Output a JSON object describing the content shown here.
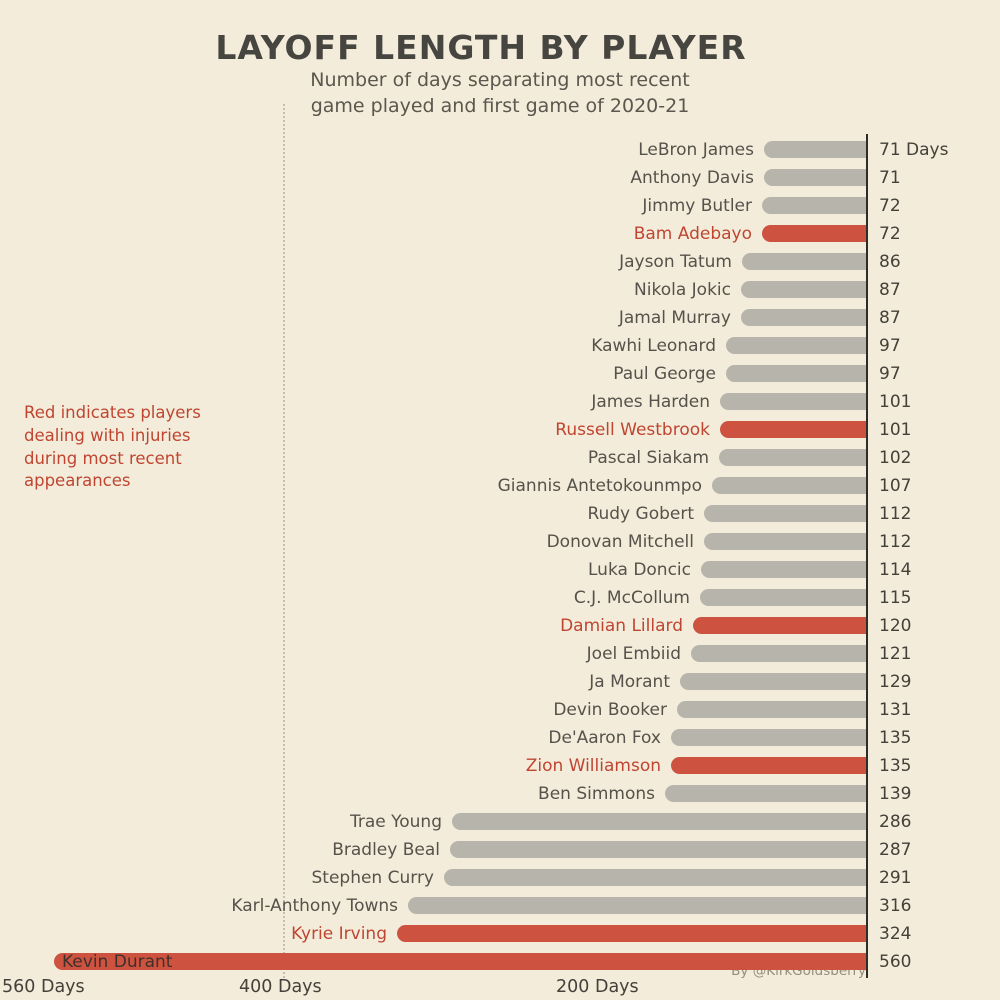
{
  "chart": {
    "title": "LAYOFF LENGTH BY PLAYER",
    "subtitle_line1": "Number of days separating most recent",
    "subtitle_line2": "game played and first game of 2020-21",
    "annotation": "Red indicates players dealing with injuries during most recent appearances",
    "byline": "By @KirkGoldsberry",
    "axis_labels": [
      "560 Days",
      "400 Days",
      "200 Days"
    ]
  },
  "chart_data": {
    "type": "bar",
    "orientation": "horizontal",
    "title": "LAYOFF LENGTH BY PLAYER",
    "subtitle": "Number of days separating most recent game played and first game of 2020-21",
    "unit": "days",
    "x_axis_reversed": true,
    "axis_ticks_days": [
      560,
      400,
      200
    ],
    "legend_note": "Red indicates players dealing with injuries during most recent appearances",
    "colors": {
      "background": "#f3ecda",
      "bar_default": "#b7b4ac",
      "bar_injured": "#cd5340",
      "injured_text": "#bf4531"
    },
    "players": [
      {
        "name": "LeBron James",
        "days": 71,
        "injured": false,
        "value_label": "71 Days"
      },
      {
        "name": "Anthony Davis",
        "days": 71,
        "injured": false,
        "value_label": "71"
      },
      {
        "name": "Jimmy Butler",
        "days": 72,
        "injured": false,
        "value_label": "72"
      },
      {
        "name": "Bam Adebayo",
        "days": 72,
        "injured": true,
        "value_label": "72"
      },
      {
        "name": "Jayson Tatum",
        "days": 86,
        "injured": false,
        "value_label": "86"
      },
      {
        "name": "Nikola Jokic",
        "days": 87,
        "injured": false,
        "value_label": "87"
      },
      {
        "name": "Jamal Murray",
        "days": 87,
        "injured": false,
        "value_label": "87"
      },
      {
        "name": "Kawhi Leonard",
        "days": 97,
        "injured": false,
        "value_label": "97"
      },
      {
        "name": "Paul George",
        "days": 97,
        "injured": false,
        "value_label": "97"
      },
      {
        "name": "James Harden",
        "days": 101,
        "injured": false,
        "value_label": "101"
      },
      {
        "name": "Russell Westbrook",
        "days": 101,
        "injured": true,
        "value_label": "101"
      },
      {
        "name": "Pascal Siakam",
        "days": 102,
        "injured": false,
        "value_label": "102"
      },
      {
        "name": "Giannis Antetokounmpo",
        "days": 107,
        "injured": false,
        "value_label": "107"
      },
      {
        "name": "Rudy Gobert",
        "days": 112,
        "injured": false,
        "value_label": "112"
      },
      {
        "name": "Donovan Mitchell",
        "days": 112,
        "injured": false,
        "value_label": "112"
      },
      {
        "name": "Luka Doncic",
        "days": 114,
        "injured": false,
        "value_label": "114"
      },
      {
        "name": "C.J. McCollum",
        "days": 115,
        "injured": false,
        "value_label": "115"
      },
      {
        "name": "Damian Lillard",
        "days": 120,
        "injured": true,
        "value_label": "120"
      },
      {
        "name": "Joel Embiid",
        "days": 121,
        "injured": false,
        "value_label": "121"
      },
      {
        "name": "Ja Morant",
        "days": 129,
        "injured": false,
        "value_label": "129"
      },
      {
        "name": "Devin Booker",
        "days": 131,
        "injured": false,
        "value_label": "131"
      },
      {
        "name": "De'Aaron Fox",
        "days": 135,
        "injured": false,
        "value_label": "135"
      },
      {
        "name": "Zion Williamson",
        "days": 135,
        "injured": true,
        "value_label": "135"
      },
      {
        "name": "Ben Simmons",
        "days": 139,
        "injured": false,
        "value_label": "139"
      },
      {
        "name": "Trae Young",
        "days": 286,
        "injured": false,
        "value_label": "286"
      },
      {
        "name": "Bradley Beal",
        "days": 287,
        "injured": false,
        "value_label": "287"
      },
      {
        "name": "Stephen Curry",
        "days": 291,
        "injured": false,
        "value_label": "291"
      },
      {
        "name": "Karl-Anthony Towns",
        "days": 316,
        "injured": false,
        "value_label": "316"
      },
      {
        "name": "Kyrie Irving",
        "days": 324,
        "injured": true,
        "value_label": "324"
      },
      {
        "name": "Kevin Durant",
        "days": 560,
        "injured": true,
        "value_label": "560"
      }
    ]
  }
}
